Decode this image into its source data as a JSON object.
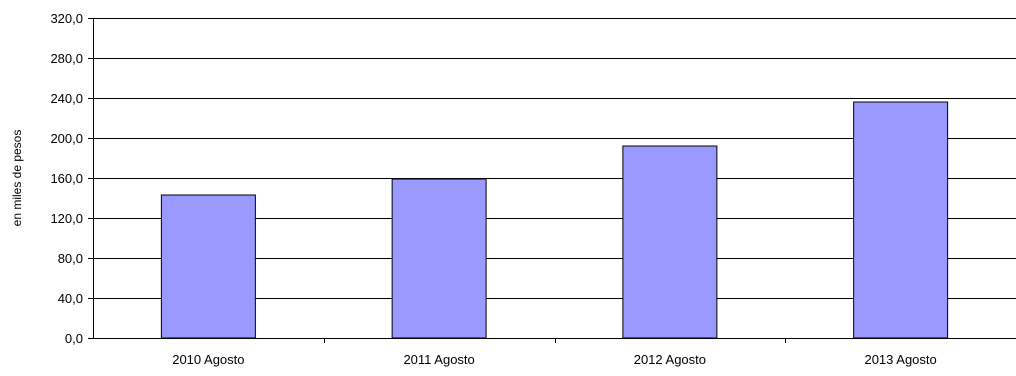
{
  "chart_data": {
    "type": "bar",
    "title": "",
    "xlabel": "",
    "ylabel": "en miles de pesos",
    "categories": [
      "2010 Agosto",
      "2011 Agosto",
      "2012 Agosto",
      "2013 Agosto"
    ],
    "values": [
      143.0,
      159.0,
      192.0,
      236.0
    ],
    "ylim": [
      0,
      320
    ],
    "yticks": [
      "0,0",
      "40,0",
      "80,0",
      "120,0",
      "160,0",
      "200,0",
      "240,0",
      "280,0",
      "320,0"
    ],
    "grid": true,
    "legend": "none",
    "bar_color": "#9999FF",
    "bar_edge_color": "#000000",
    "grid_color": "#000000"
  }
}
